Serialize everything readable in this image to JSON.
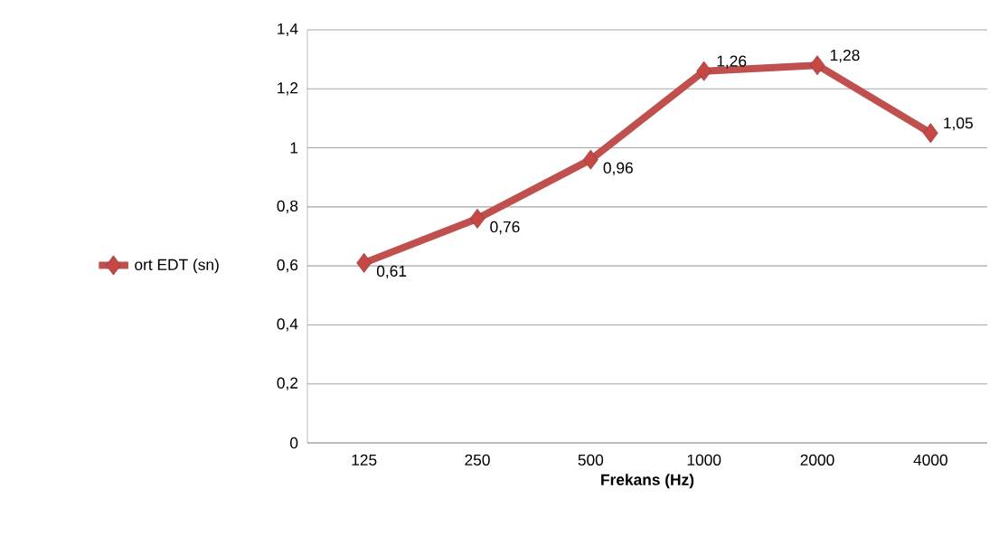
{
  "chart_data": {
    "type": "line",
    "xlabel": "Frekans (Hz)",
    "categories": [
      "125",
      "250",
      "500",
      "1000",
      "2000",
      "4000"
    ],
    "series": [
      {
        "name": "ort EDT (sn)",
        "color": "#c0504d",
        "values": [
          0.61,
          0.76,
          0.96,
          1.26,
          1.28,
          1.05
        ],
        "value_labels": [
          "0,61",
          "0,76",
          "0,96",
          "1,26",
          "1,28",
          "1,05"
        ]
      }
    ],
    "ylim": [
      0,
      1.4
    ],
    "yticks": [
      0,
      {
        "value": 0.2,
        "label": "0,2"
      },
      {
        "value": 0.4,
        "label": "0,4"
      },
      {
        "value": 0.6,
        "label": "0,6"
      },
      {
        "value": 0.8,
        "label": "0,8"
      },
      1,
      {
        "value": 1.2,
        "label": "1,2"
      },
      {
        "value": 1.4,
        "label": "1,4"
      }
    ],
    "grid": "y",
    "legend": "left",
    "marker": "diamond",
    "line_style": "solid"
  }
}
